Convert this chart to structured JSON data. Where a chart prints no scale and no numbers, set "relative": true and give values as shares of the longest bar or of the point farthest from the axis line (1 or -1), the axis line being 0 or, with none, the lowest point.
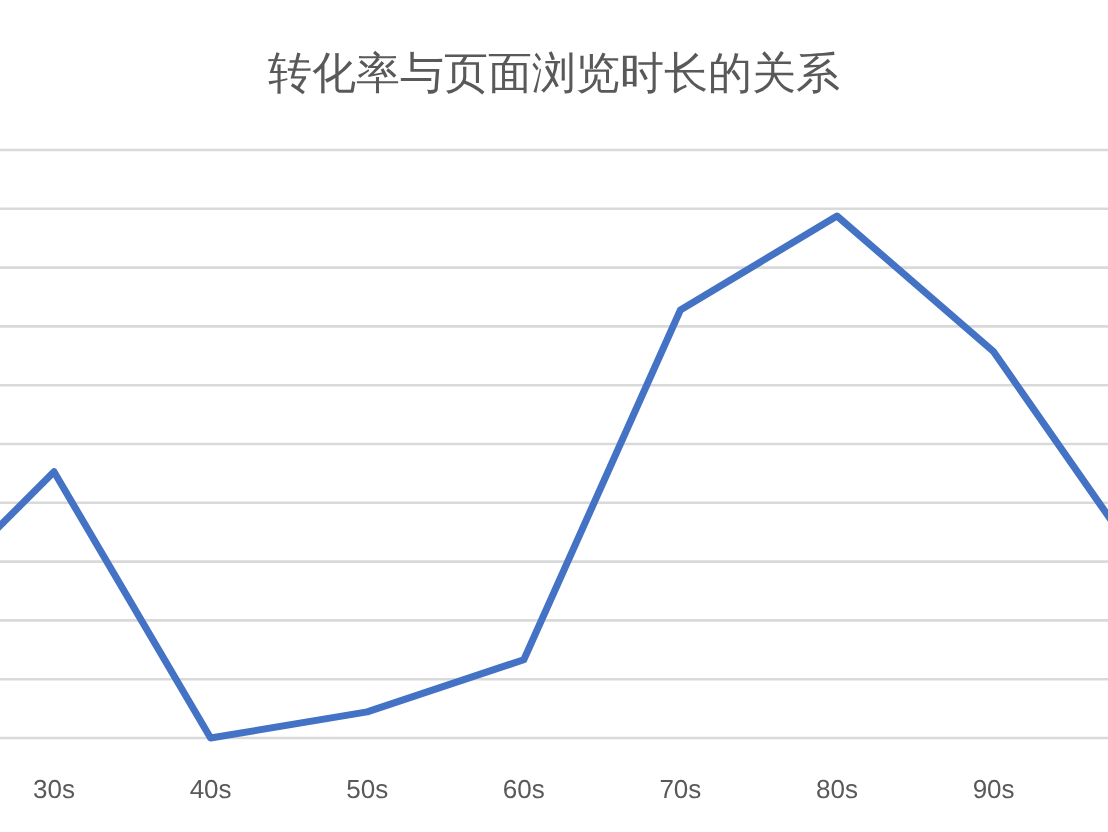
{
  "chart_data": {
    "type": "line",
    "title": "转化率与页面浏览时长的关系",
    "categories": [
      null,
      "30s",
      "40s",
      "50s",
      "60s",
      "70s",
      "80s",
      "90s",
      null
    ],
    "series": [
      {
        "color": "#4472c4",
        "values": [
          0.21,
          0.51,
          0,
          0.05,
          0.15,
          0.82,
          1,
          0.74,
          0.31
        ]
      }
    ],
    "relative": true,
    "grid": true,
    "marker": "none",
    "line_style": "solid"
  }
}
